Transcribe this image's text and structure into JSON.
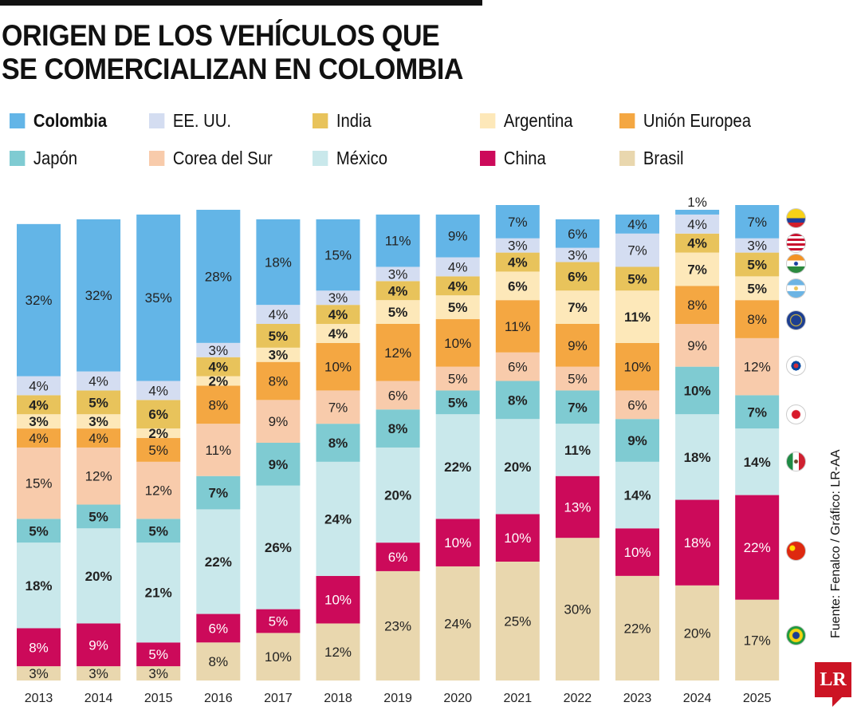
{
  "title_lines": [
    "ORIGEN DE LOS VEHÍCULOS QUE",
    "SE COMERCIALIZAN EN COLOMBIA"
  ],
  "source": "Fuente: Fenalco  / Gráfico: LR-AA",
  "logo": "LR",
  "chart_data": {
    "type": "bar",
    "stacked": true,
    "title": "ORIGEN DE LOS VEHÍCULOS QUE SE COMERCIALIZAN EN COLOMBIA",
    "unit": "%",
    "categories": [
      "2013",
      "2014",
      "2015",
      "2016",
      "2017",
      "2018",
      "2019",
      "2020",
      "2021",
      "2022",
      "2023",
      "2024",
      "2025"
    ],
    "series": [
      {
        "name": "Brasil",
        "color": "#e9d7ae",
        "bold": false,
        "values": [
          3,
          3,
          3,
          8,
          10,
          12,
          23,
          24,
          25,
          30,
          22,
          20,
          17
        ]
      },
      {
        "name": "China",
        "color": "#cc0a5a",
        "bold": false,
        "text": "#fff",
        "values": [
          8,
          9,
          5,
          6,
          5,
          10,
          6,
          10,
          10,
          13,
          10,
          18,
          22
        ]
      },
      {
        "name": "México",
        "color": "#c9e8eb",
        "bold": true,
        "values": [
          18,
          20,
          21,
          22,
          26,
          24,
          20,
          22,
          20,
          11,
          14,
          18,
          14
        ]
      },
      {
        "name": "Japón",
        "color": "#7fcbd2",
        "bold": true,
        "values": [
          5,
          5,
          5,
          7,
          9,
          8,
          8,
          5,
          8,
          7,
          9,
          10,
          7
        ]
      },
      {
        "name": "Corea del Sur",
        "color": "#f8cbab",
        "bold": false,
        "values": [
          15,
          12,
          12,
          11,
          9,
          7,
          6,
          5,
          6,
          5,
          6,
          9,
          12
        ]
      },
      {
        "name": "Unión Europea",
        "color": "#f4a742",
        "bold": false,
        "values": [
          4,
          4,
          5,
          8,
          8,
          10,
          12,
          10,
          11,
          9,
          10,
          8,
          8
        ]
      },
      {
        "name": "Argentina",
        "color": "#fde8b9",
        "bold": true,
        "values": [
          3,
          3,
          2,
          2,
          3,
          4,
          5,
          5,
          6,
          7,
          11,
          7,
          5
        ]
      },
      {
        "name": "India",
        "color": "#e8c35b",
        "bold": true,
        "values": [
          4,
          5,
          6,
          4,
          5,
          4,
          4,
          4,
          4,
          6,
          5,
          4,
          5
        ]
      },
      {
        "name": "EE. UU.",
        "color": "#d4ddf1",
        "bold": false,
        "values": [
          4,
          4,
          4,
          3,
          4,
          3,
          3,
          4,
          3,
          3,
          7,
          4,
          3
        ]
      },
      {
        "name": "Colombia",
        "color": "#63b5e7",
        "bold": false,
        "values": [
          32,
          32,
          35,
          28,
          18,
          15,
          11,
          9,
          7,
          6,
          4,
          1,
          7
        ]
      }
    ],
    "legend": [
      {
        "name": "Colombia",
        "color": "#63b5e7",
        "bold": true
      },
      {
        "name": "EE. UU.",
        "color": "#d4ddf1"
      },
      {
        "name": "India",
        "color": "#e8c35b"
      },
      {
        "name": "Argentina",
        "color": "#fde8b9"
      },
      {
        "name": "Unión Europea",
        "color": "#f4a742"
      },
      {
        "name": "Japón",
        "color": "#7fcbd2"
      },
      {
        "name": "Corea del Sur",
        "color": "#f8cbab"
      },
      {
        "name": "México",
        "color": "#c9e8eb"
      },
      {
        "name": "China",
        "color": "#cc0a5a"
      },
      {
        "name": "Brasil",
        "color": "#e9d7ae"
      }
    ],
    "legend_placement": "top",
    "grid": false
  }
}
